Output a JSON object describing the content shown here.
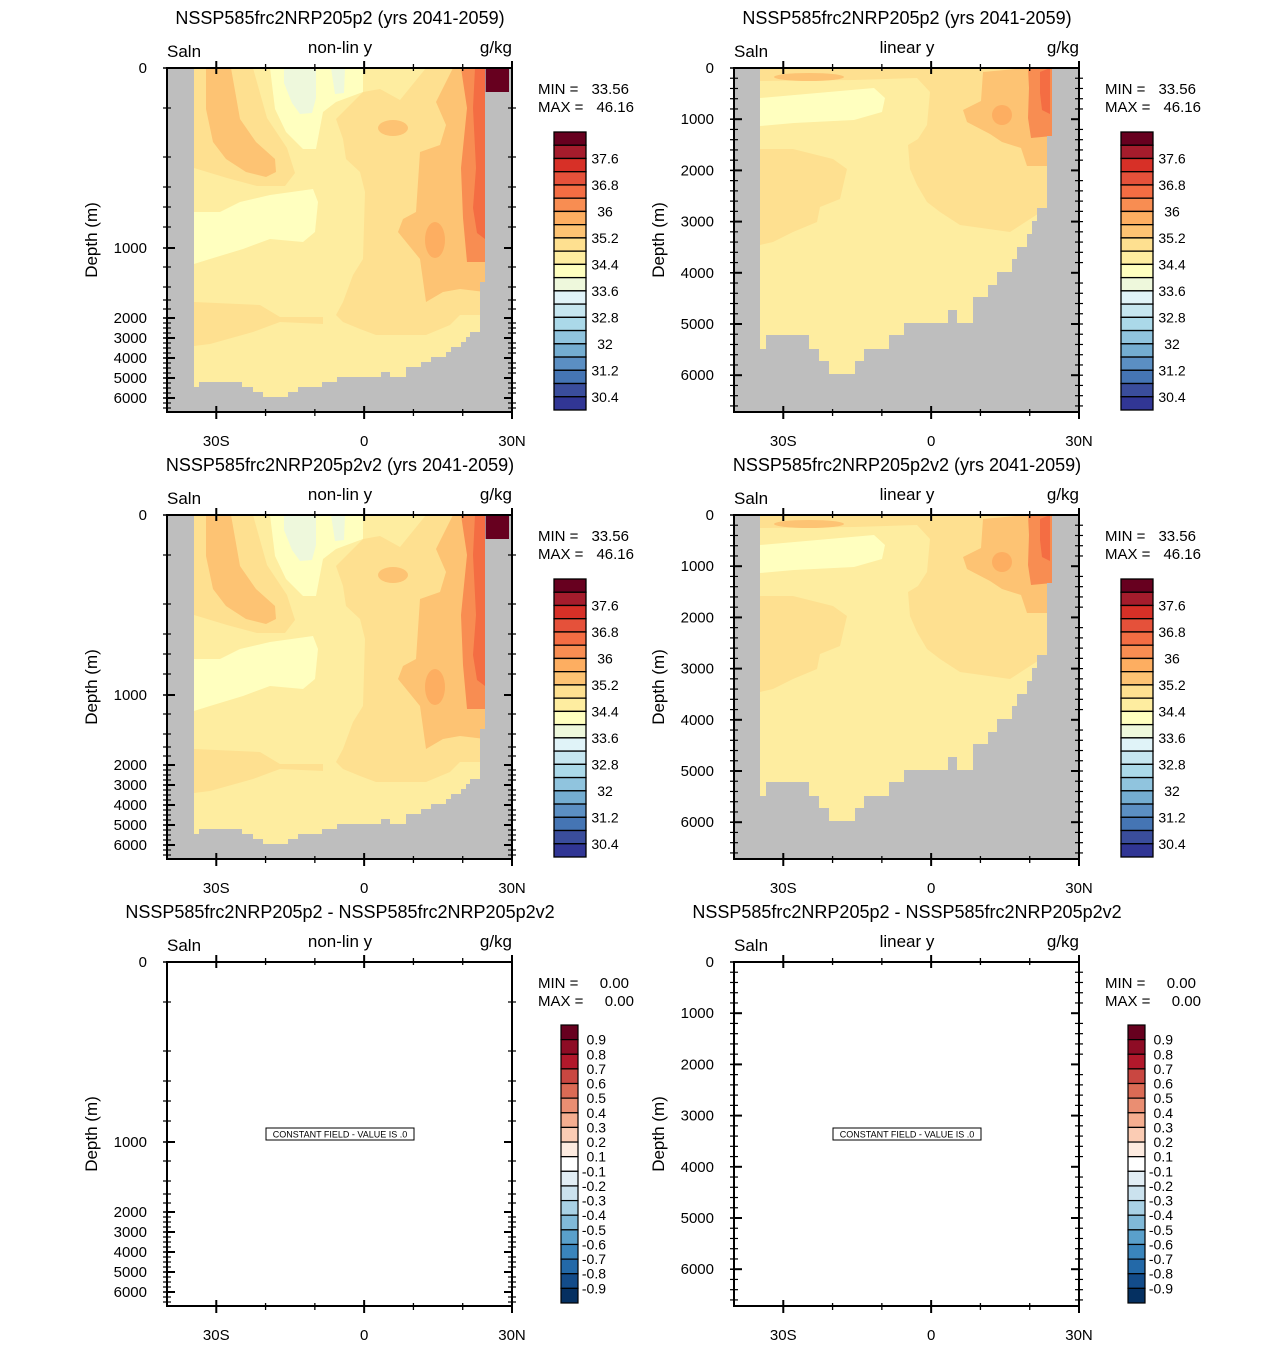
{
  "chart_data": [
    {
      "type": "heatmap",
      "title": "NSSP585frc2NRP205p2 (yrs 2041-2059)",
      "left_label": "Saln",
      "center_label": "non-lin y",
      "right_label": "g/kg",
      "ylabel": "Depth (m)",
      "y_scale": "non-linear",
      "yticks": [
        "0",
        "1000",
        "2000",
        "3000",
        "4000",
        "5000",
        "6000"
      ],
      "xticks": [
        "30S",
        "0",
        "30N"
      ],
      "xlim": [
        -40,
        30
      ],
      "min_label": "MIN =",
      "min": "33.56",
      "max_label": "MAX =",
      "max": "46.16",
      "colorbar": "salinity",
      "field": "salinity"
    },
    {
      "type": "heatmap",
      "title": "NSSP585frc2NRP205p2 (yrs 2041-2059)",
      "left_label": "Saln",
      "center_label": "linear y",
      "right_label": "g/kg",
      "ylabel": "Depth (m)",
      "y_scale": "linear",
      "yticks": [
        "0",
        "1000",
        "2000",
        "3000",
        "4000",
        "5000",
        "6000"
      ],
      "xticks": [
        "30S",
        "0",
        "30N"
      ],
      "xlim": [
        -40,
        30
      ],
      "min_label": "MIN =",
      "min": "33.56",
      "max_label": "MAX =",
      "max": "46.16",
      "colorbar": "salinity",
      "field": "salinity"
    },
    {
      "type": "heatmap",
      "title": "NSSP585frc2NRP205p2v2 (yrs 2041-2059)",
      "left_label": "Saln",
      "center_label": "non-lin y",
      "right_label": "g/kg",
      "ylabel": "Depth (m)",
      "y_scale": "non-linear",
      "yticks": [
        "0",
        "1000",
        "2000",
        "3000",
        "4000",
        "5000",
        "6000"
      ],
      "xticks": [
        "30S",
        "0",
        "30N"
      ],
      "xlim": [
        -40,
        30
      ],
      "min_label": "MIN =",
      "min": "33.56",
      "max_label": "MAX =",
      "max": "46.16",
      "colorbar": "salinity",
      "field": "salinity"
    },
    {
      "type": "heatmap",
      "title": "NSSP585frc2NRP205p2v2 (yrs 2041-2059)",
      "left_label": "Saln",
      "center_label": "linear y",
      "right_label": "g/kg",
      "ylabel": "Depth (m)",
      "y_scale": "linear",
      "yticks": [
        "0",
        "1000",
        "2000",
        "3000",
        "4000",
        "5000",
        "6000"
      ],
      "xticks": [
        "30S",
        "0",
        "30N"
      ],
      "xlim": [
        -40,
        30
      ],
      "min_label": "MIN =",
      "min": "33.56",
      "max_label": "MAX =",
      "max": "46.16",
      "colorbar": "salinity",
      "field": "salinity"
    },
    {
      "type": "heatmap",
      "title": "NSSP585frc2NRP205p2 - NSSP585frc2NRP205p2v2",
      "left_label": "Saln",
      "center_label": "non-lin y",
      "right_label": "g/kg",
      "ylabel": "Depth (m)",
      "y_scale": "non-linear",
      "yticks": [
        "0",
        "1000",
        "2000",
        "3000",
        "4000",
        "5000",
        "6000"
      ],
      "xticks": [
        "30S",
        "0",
        "30N"
      ],
      "xlim": [
        -40,
        30
      ],
      "min_label": "MIN =",
      "min": "0.00",
      "max_label": "MAX =",
      "max": "0.00",
      "colorbar": "difference",
      "field": "constant",
      "note": "CONSTANT FIELD - VALUE IS .0"
    },
    {
      "type": "heatmap",
      "title": "NSSP585frc2NRP205p2 - NSSP585frc2NRP205p2v2",
      "left_label": "Saln",
      "center_label": "linear y",
      "right_label": "g/kg",
      "ylabel": "Depth (m)",
      "y_scale": "linear",
      "yticks": [
        "0",
        "1000",
        "2000",
        "3000",
        "4000",
        "5000",
        "6000"
      ],
      "xticks": [
        "30S",
        "0",
        "30N"
      ],
      "xlim": [
        -40,
        30
      ],
      "min_label": "MIN =",
      "min": "0.00",
      "max_label": "MAX =",
      "max": "0.00",
      "colorbar": "difference",
      "field": "constant",
      "note": "CONSTANT FIELD - VALUE IS .0"
    }
  ],
  "colorbars": {
    "salinity": {
      "levels": [
        "38",
        "37.6",
        "37.2",
        "36.8",
        "36.4",
        "36",
        "35.6",
        "35.2",
        "34.8",
        "34.4",
        "34",
        "33.6",
        "33.2",
        "32.8",
        "32.4",
        "32",
        "31.6",
        "31.2",
        "30.8",
        "30.4"
      ],
      "labels": [
        "37.6",
        "36.8",
        "36",
        "35.2",
        "34.4",
        "33.6",
        "32.8",
        "32",
        "31.2",
        "30.4"
      ],
      "colors": [
        "#67001f",
        "#a51c2c",
        "#d73027",
        "#e5513a",
        "#f46d43",
        "#f88d52",
        "#fdae61",
        "#fdc373",
        "#fee090",
        "#feeda0",
        "#ffffbf",
        "#eef8dc",
        "#e0f3f8",
        "#c6e6f0",
        "#abd9e9",
        "#90c4de",
        "#74add1",
        "#5b8fc3",
        "#4575b4",
        "#3a4d9c",
        "#313695"
      ]
    },
    "difference": {
      "labels": [
        "0.9",
        "0.8",
        "0.7",
        "0.6",
        "0.5",
        "0.4",
        "0.3",
        "0.2",
        "0.1",
        "-0.1",
        "-0.2",
        "-0.3",
        "-0.4",
        "-0.5",
        "-0.6",
        "-0.7",
        "-0.8",
        "-0.9"
      ],
      "colors": [
        "#67001f",
        "#8e0c25",
        "#b2182b",
        "#c94741",
        "#db6b55",
        "#ea8e72",
        "#f5ae90",
        "#fbccb4",
        "#fdebe0",
        "#ffffff",
        "#e2eef5",
        "#cbe2ee",
        "#a9d1e5",
        "#80b9d8",
        "#5aa0cb",
        "#3a85bc",
        "#2369a8",
        "#134c8a",
        "#053061"
      ]
    }
  },
  "land_color": "#bebebe"
}
